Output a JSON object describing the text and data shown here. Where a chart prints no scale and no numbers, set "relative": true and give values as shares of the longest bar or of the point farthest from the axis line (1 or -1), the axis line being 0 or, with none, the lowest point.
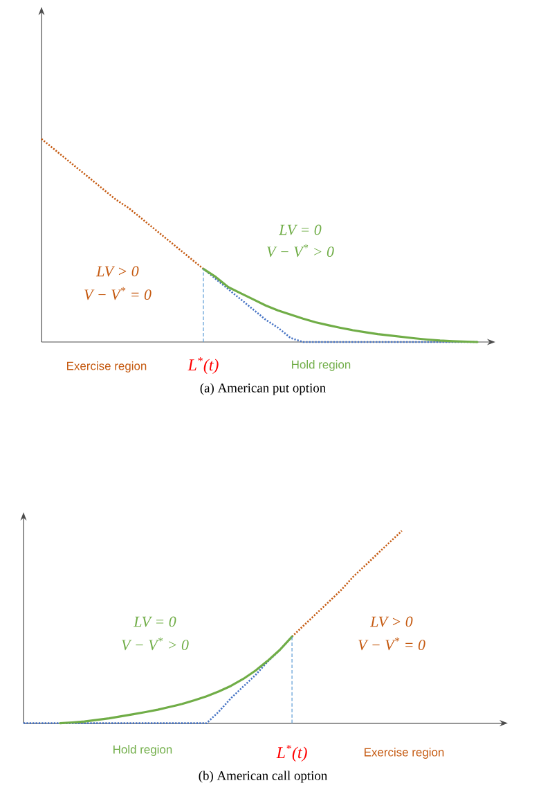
{
  "chart_data": [
    {
      "type": "line",
      "relative": true,
      "title": "(a) American put option",
      "categories": [
        null,
        null,
        null,
        null,
        null,
        null,
        null,
        null,
        null,
        null,
        null,
        null,
        null,
        null,
        null,
        null,
        null,
        null,
        null,
        null,
        null,
        null,
        null,
        null,
        null,
        null,
        null,
        null,
        null,
        null,
        null,
        null,
        null,
        null,
        null,
        null
      ],
      "series": [
        {
          "color": "#4472c4",
          "line_style": "dotted",
          "values": [
            null,
            null,
            null,
            null,
            null,
            null,
            null,
            null,
            null,
            null,
            null,
            null,
            null,
            0.36,
            0.31,
            0.26,
            0.21,
            0.16,
            0.11,
            0.07,
            0.02,
            0,
            0,
            0,
            0,
            0,
            0,
            0,
            0,
            0,
            0,
            0,
            0,
            0,
            0,
            0
          ]
        },
        {
          "color": "#c55a11",
          "line_style": "dotted",
          "values": [
            1,
            0.95,
            0.9,
            0.85,
            0.8,
            0.75,
            0.7,
            0.66,
            0.61,
            0.56,
            0.51,
            0.46,
            0.41,
            0.36,
            null,
            null,
            null,
            null,
            null,
            null,
            null,
            null,
            null,
            null,
            null,
            null,
            null,
            null,
            null,
            null,
            null,
            null,
            null,
            null,
            null,
            null
          ]
        },
        {
          "color": "#70ad47",
          "line_style": "solid",
          "values": [
            null,
            null,
            null,
            null,
            null,
            null,
            null,
            null,
            null,
            null,
            null,
            null,
            null,
            0.36,
            0.32,
            0.27,
            0.24,
            0.21,
            0.18,
            0.155,
            0.135,
            0.115,
            0.097,
            0.083,
            0.07,
            0.058,
            0.048,
            0.039,
            0.032,
            0.025,
            0.018,
            0.012,
            0.007,
            0.004,
            0.002,
            0
          ]
        }
      ],
      "annotations": [
        "LV > 0",
        "V − V$^{*}$ = 0",
        "LV = 0",
        "V − V$^{*}$ > 0",
        "Exercise region",
        "L$^{*}$(t)",
        "Hold region"
      ]
    },
    {
      "type": "line",
      "relative": true,
      "title": "(b) American call option",
      "categories": [
        null,
        null,
        null,
        null,
        null,
        null,
        null,
        null,
        null,
        null,
        null,
        null,
        null,
        null,
        null,
        null,
        null,
        null,
        null,
        null,
        null,
        null,
        null,
        null,
        null,
        null,
        null,
        null,
        null,
        null,
        null,
        null,
        null,
        null,
        null,
        null,
        null,
        null,
        null,
        null
      ],
      "series": [
        {
          "color": "#4472c4",
          "line_style": "dotted",
          "values": [
            0,
            0,
            0,
            0,
            0,
            0,
            0,
            0,
            0,
            0,
            0,
            0,
            0,
            0,
            0,
            0,
            0.06,
            0.13,
            0.19,
            0.25,
            0.32,
            0.38,
            0.45,
            null,
            null,
            null,
            null,
            null,
            null,
            null,
            null,
            null,
            null,
            null,
            null,
            null,
            null,
            null,
            null,
            null
          ]
        },
        {
          "color": "#c55a11",
          "line_style": "dotted",
          "values": [
            null,
            null,
            null,
            null,
            null,
            null,
            null,
            null,
            null,
            null,
            null,
            null,
            null,
            null,
            null,
            null,
            null,
            null,
            null,
            null,
            null,
            null,
            0.45,
            0.51,
            0.57,
            0.63,
            0.69,
            0.76,
            0.82,
            0.88,
            0.94,
            1,
            null,
            null,
            null,
            null,
            null,
            null,
            null,
            null
          ]
        },
        {
          "color": "#70ad47",
          "line_style": "solid",
          "values": [
            null,
            null,
            null,
            0,
            0.004,
            0.009,
            0.017,
            0.025,
            0.036,
            0.047,
            0.058,
            0.07,
            0.085,
            0.1,
            0.119,
            0.14,
            0.165,
            0.194,
            0.23,
            0.273,
            0.324,
            0.381,
            0.45,
            null,
            null,
            null,
            null,
            null,
            null,
            null,
            null,
            null,
            null,
            null,
            null,
            null,
            null,
            null,
            null,
            null
          ]
        }
      ],
      "annotations": [
        "LV = 0",
        "V − V$^{*}$ > 0",
        "LV > 0",
        "V − V$^{*}$ = 0",
        "Hold region",
        "L$^{*}$(t)",
        "Exercise region"
      ]
    }
  ]
}
